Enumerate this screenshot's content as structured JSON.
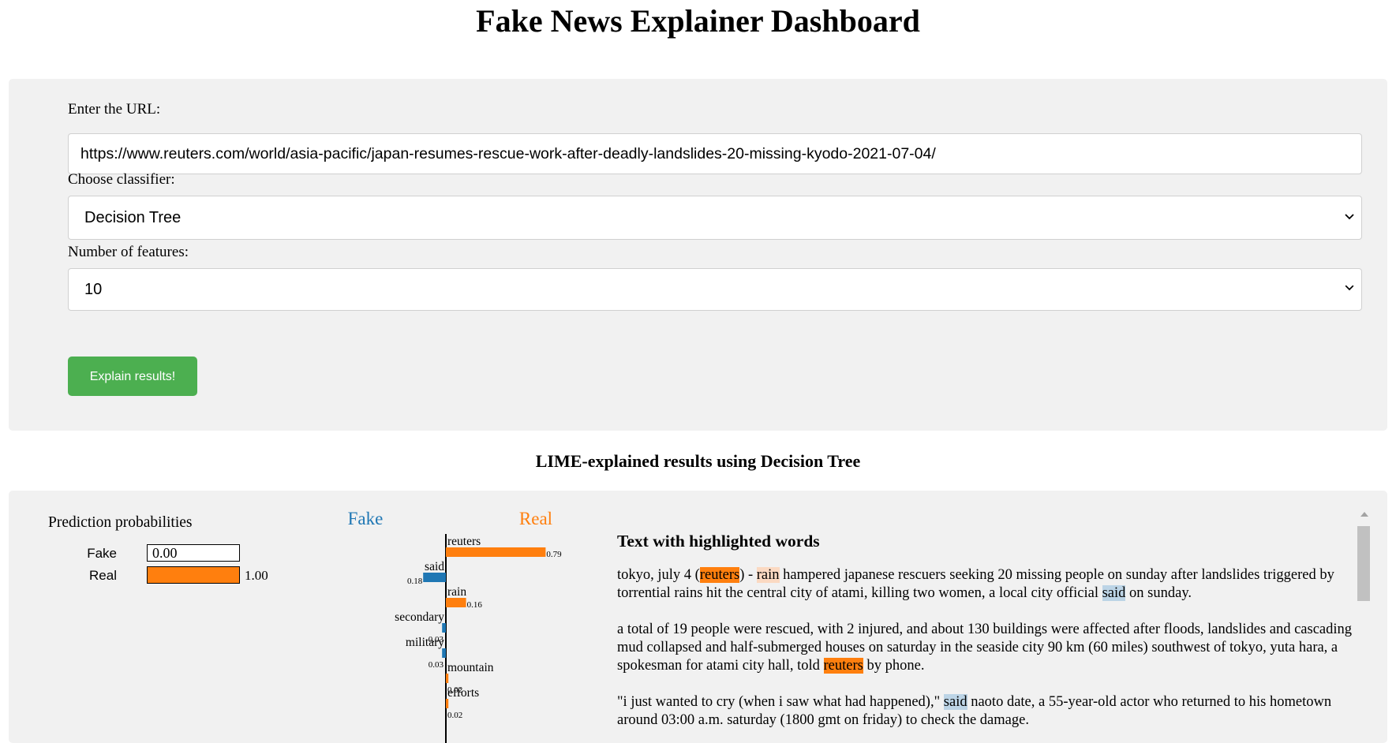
{
  "page": {
    "title": "Fake News Explainer Dashboard"
  },
  "form": {
    "url_label": "Enter the URL:",
    "url_value": "https://www.reuters.com/world/asia-pacific/japan-resumes-rescue-work-after-deadly-landslides-20-missing-kyodo-2021-07-04/",
    "classifier_label": "Choose classifier:",
    "classifier_value": "Decision Tree",
    "features_label": "Number of features:",
    "features_value": "10",
    "submit_label": "Explain results!",
    "submit_color": "#4caf50"
  },
  "results": {
    "heading": "LIME-explained results using Decision Tree",
    "prediction": {
      "title": "Prediction probabilities",
      "classes": [
        {
          "label": "Fake",
          "value": "0.00",
          "fraction": 0.0
        },
        {
          "label": "Real",
          "value": "1.00",
          "fraction": 1.0
        }
      ]
    },
    "text_panel": {
      "title": "Text with highlighted words"
    }
  },
  "colors": {
    "fake": "#1f77b4",
    "real": "#ff7f0e"
  },
  "icons": {
    "select_arrow": "chevron-down-icon",
    "scroll_up": "scroll-up-arrow-icon"
  },
  "chart_data": {
    "type": "bar",
    "class_labels": {
      "left": "Fake",
      "right": "Real"
    },
    "categories": [
      "reuters",
      "said",
      "rain",
      "secondary",
      "military",
      "mountain",
      "efforts"
    ],
    "values": [
      0.79,
      0.18,
      0.16,
      0.03,
      0.03,
      0.02,
      0.02
    ],
    "value_labels": [
      "0.79",
      "0.18",
      "0.16",
      "0.03",
      "0.03",
      "0.02",
      "0.02"
    ],
    "sides": [
      "Real",
      "Fake",
      "Real",
      "Fake",
      "Fake",
      "Real",
      "Real"
    ]
  }
}
